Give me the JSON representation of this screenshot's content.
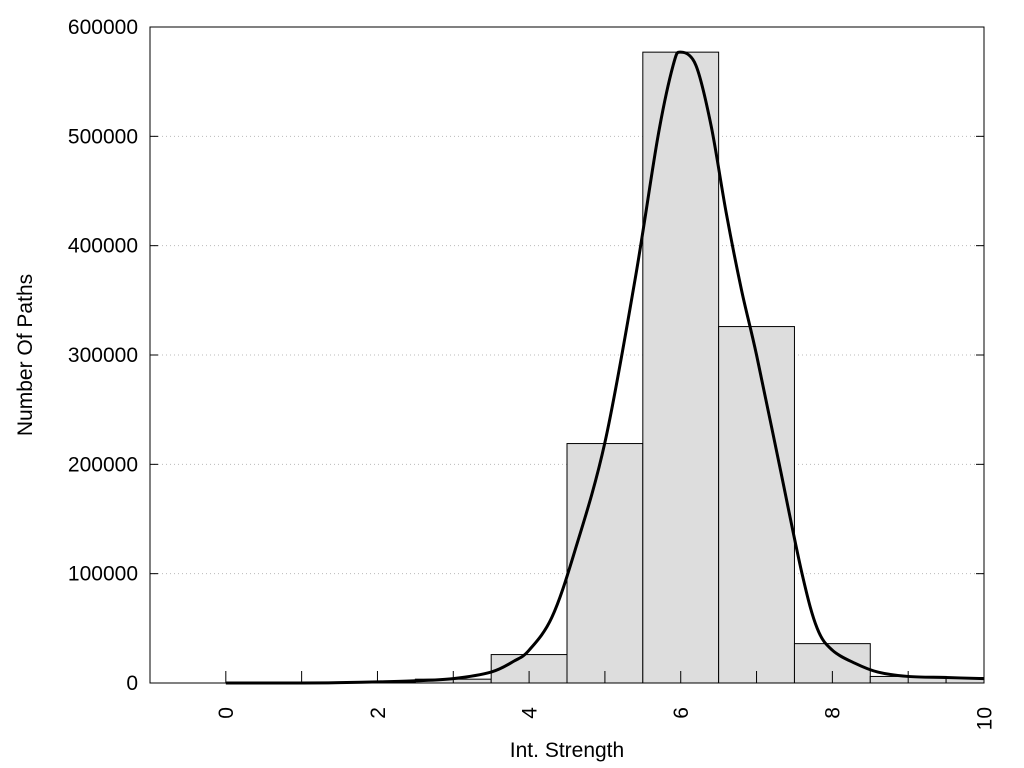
{
  "chart_data": {
    "type": "bar",
    "xlabel": "Int. Strength",
    "ylabel": "Number Of Paths",
    "xlim": [
      -1,
      10
    ],
    "ylim": [
      0,
      600000
    ],
    "x_ticks": [
      0,
      2,
      4,
      6,
      8,
      10
    ],
    "y_ticks": [
      0,
      100000,
      200000,
      300000,
      400000,
      500000,
      600000
    ],
    "grid": "horizontal dotted",
    "bar_fill": "#dddddd",
    "bar_stroke": "#000000",
    "series": [
      {
        "type": "bar",
        "x": [
          0,
          1,
          2,
          3,
          4,
          5,
          6,
          7,
          8,
          9,
          10
        ],
        "values": [
          0,
          0,
          500,
          3500,
          26000,
          219000,
          577000,
          326000,
          36000,
          6000,
          5000
        ]
      },
      {
        "type": "line",
        "x": [
          0,
          1,
          1.5,
          2,
          2.5,
          3,
          3.5,
          3.8,
          4,
          4.3,
          4.6,
          5,
          5.4,
          5.7,
          5.9,
          6,
          6.2,
          6.4,
          6.6,
          6.8,
          7,
          7.3,
          7.6,
          7.8,
          8,
          8.3,
          8.6,
          9,
          9.5,
          10
        ],
        "values": [
          0,
          0,
          300,
          1000,
          2000,
          4000,
          10000,
          20000,
          30000,
          60000,
          120000,
          220000,
          370000,
          500000,
          565000,
          577000,
          565000,
          510000,
          430000,
          360000,
          300000,
          200000,
          100000,
          50000,
          30000,
          18000,
          10000,
          6000,
          5000,
          4000
        ]
      }
    ]
  }
}
